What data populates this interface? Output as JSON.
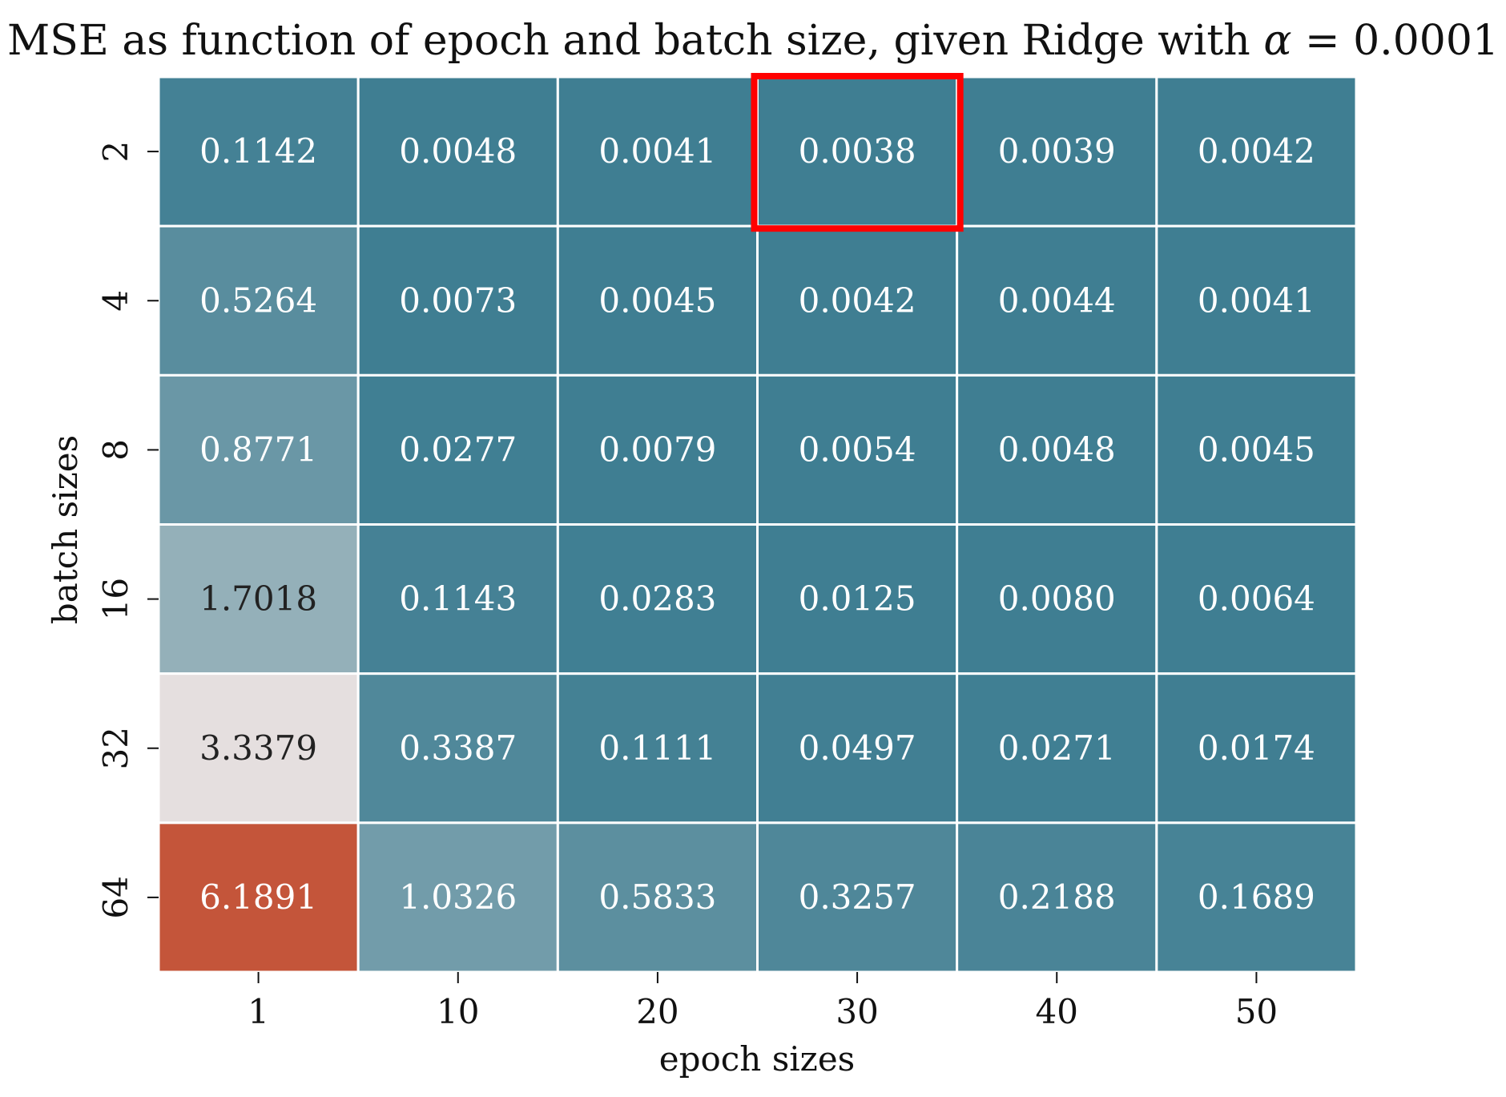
{
  "chart_data": {
    "type": "heatmap",
    "title_prefix": "MSE as function of epoch and batch size, given Ridge with ",
    "title_symbol": "α",
    "title_suffix": " = 0.0001",
    "xlabel": "epoch sizes",
    "ylabel": "batch sizes",
    "x_categories": [
      "1",
      "10",
      "20",
      "30",
      "40",
      "50"
    ],
    "y_categories": [
      "2",
      "4",
      "8",
      "16",
      "32",
      "64"
    ],
    "values": [
      [
        0.1142,
        0.0048,
        0.0041,
        0.0038,
        0.0039,
        0.0042
      ],
      [
        0.5264,
        0.0073,
        0.0045,
        0.0042,
        0.0044,
        0.0041
      ],
      [
        0.8771,
        0.0277,
        0.0079,
        0.0054,
        0.0048,
        0.0045
      ],
      [
        1.7018,
        0.1143,
        0.0283,
        0.0125,
        0.008,
        0.0064
      ],
      [
        3.3379,
        0.3387,
        0.1111,
        0.0497,
        0.0271,
        0.0174
      ],
      [
        6.1891,
        1.0326,
        0.5833,
        0.3257,
        0.2188,
        0.1689
      ]
    ],
    "value_format_decimals": 4,
    "colormap": {
      "low": "#3f7e92",
      "mid": "#f2e7e5",
      "high": "#c4553a",
      "mid_value": 3.6,
      "vmin": 0.0038,
      "vmax": 6.1891
    },
    "highlight": {
      "row": 0,
      "col": 3,
      "color": "#ff0000"
    },
    "grid_line_color": "#ffffff",
    "colorbar": false
  }
}
